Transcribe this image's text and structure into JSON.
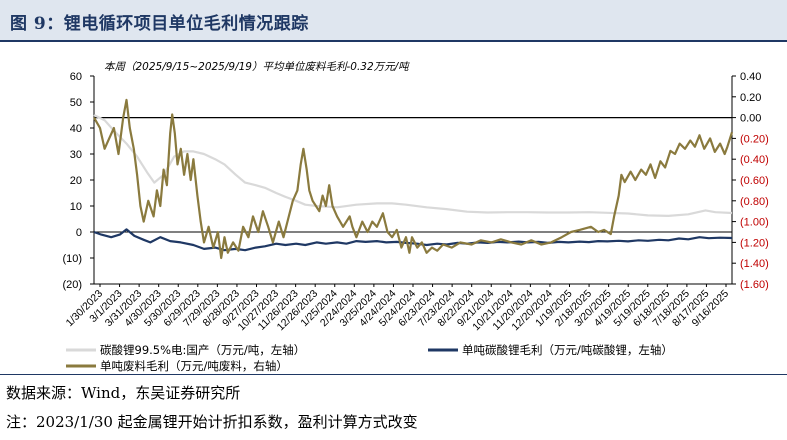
{
  "header": {
    "title": "图 9：锂电循环项目单位毛利情况跟踪"
  },
  "footer": {
    "source": "数据来源：Wind，东吴证券研究所",
    "note": "注：2023/1/30 起金属锂开始计折扣系数，盈利计算方式改变"
  },
  "colors": {
    "lithium_carbonate_price": "#d9d9d9",
    "lithium_carbonate_margin": "#1f3864",
    "waste_margin": "#8a7a3e",
    "neg_label": "#c00000"
  },
  "chart_data": {
    "type": "line",
    "annotation": "本周（2025/9/15~2025/9/19）平均单位废料毛利-0.32万元/吨",
    "x_ticks": [
      "1/30/2023",
      "3/1/2023",
      "3/31/2023",
      "4/30/2023",
      "5/30/2023",
      "6/29/2023",
      "7/29/2023",
      "8/28/2023",
      "9/27/2023",
      "10/27/2023",
      "11/26/2023",
      "12/26/2023",
      "1/25/2024",
      "2/24/2024",
      "3/25/2024",
      "4/24/2024",
      "5/24/2024",
      "6/23/2024",
      "7/23/2024",
      "8/22/2024",
      "9/21/2024",
      "10/21/2024",
      "11/20/2024",
      "12/20/2024",
      "1/19/2025",
      "2/18/2025",
      "3/20/2025",
      "4/19/2025",
      "5/19/2025",
      "6/18/2025",
      "7/18/2025",
      "8/17/2025",
      "9/16/2025"
    ],
    "x_range": [
      "2023-01-30",
      "2025-09-19"
    ],
    "y_left": {
      "min": -20,
      "max": 60,
      "ticks": [
        "60",
        "50",
        "40",
        "30",
        "20",
        "10",
        "0",
        "(10)",
        "(20)"
      ]
    },
    "y_right": {
      "min": -1.6,
      "max": 0.4,
      "ticks": [
        "0.40",
        "0.20",
        "0.00",
        "(0.20)",
        "(0.40)",
        "(0.60)",
        "(0.80)",
        "(1.00)",
        "(1.20)",
        "(1.40)",
        "(1.60)"
      ]
    },
    "series": [
      {
        "name": "碳酸锂99.5%电:国产（万元/吨，左轴）",
        "axis": "left",
        "points": [
          [
            "2023-01-30",
            45
          ],
          [
            "2023-02-15",
            43
          ],
          [
            "2023-03-01",
            39
          ],
          [
            "2023-03-20",
            34
          ],
          [
            "2023-04-05",
            29
          ],
          [
            "2023-04-20",
            23
          ],
          [
            "2023-05-01",
            19
          ],
          [
            "2023-05-15",
            22
          ],
          [
            "2023-05-31",
            29
          ],
          [
            "2023-06-15",
            31
          ],
          [
            "2023-06-29",
            31
          ],
          [
            "2023-07-15",
            30
          ],
          [
            "2023-08-01",
            28
          ],
          [
            "2023-08-15",
            26
          ],
          [
            "2023-09-01",
            22
          ],
          [
            "2023-09-15",
            19
          ],
          [
            "2023-10-01",
            18
          ],
          [
            "2023-10-15",
            17
          ],
          [
            "2023-11-01",
            15
          ],
          [
            "2023-11-15",
            13.5
          ],
          [
            "2023-12-01",
            12
          ],
          [
            "2023-12-15",
            10.5
          ],
          [
            "2024-01-01",
            10
          ],
          [
            "2024-02-01",
            9.5
          ],
          [
            "2024-03-01",
            10.5
          ],
          [
            "2024-04-01",
            11
          ],
          [
            "2024-04-24",
            11
          ],
          [
            "2024-05-15",
            10.5
          ],
          [
            "2024-06-15",
            9.5
          ],
          [
            "2024-07-15",
            8.8
          ],
          [
            "2024-08-15",
            7.8
          ],
          [
            "2024-09-15",
            7.5
          ],
          [
            "2024-10-15",
            7.6
          ],
          [
            "2024-11-15",
            7.6
          ],
          [
            "2024-12-15",
            7.5
          ],
          [
            "2025-01-15",
            7.5
          ],
          [
            "2025-02-15",
            7.6
          ],
          [
            "2025-03-15",
            7.4
          ],
          [
            "2025-04-15",
            7.1
          ],
          [
            "2025-05-15",
            6.4
          ],
          [
            "2025-06-15",
            6.2
          ],
          [
            "2025-07-15",
            6.8
          ],
          [
            "2025-08-10",
            8.3
          ],
          [
            "2025-08-25",
            7.6
          ],
          [
            "2025-09-19",
            7.3
          ]
        ]
      },
      {
        "name": "单吨碳酸锂毛利（万元/吨碳酸锂，左轴）",
        "axis": "left",
        "points": [
          [
            "2023-01-30",
            0
          ],
          [
            "2023-02-10",
            -1
          ],
          [
            "2023-02-25",
            -2
          ],
          [
            "2023-03-10",
            -1
          ],
          [
            "2023-03-20",
            1
          ],
          [
            "2023-04-01",
            -1.5
          ],
          [
            "2023-04-15",
            -3
          ],
          [
            "2023-04-25",
            -4
          ],
          [
            "2023-05-10",
            -2
          ],
          [
            "2023-05-25",
            -3.5
          ],
          [
            "2023-06-10",
            -4
          ],
          [
            "2023-06-29",
            -5
          ],
          [
            "2023-07-15",
            -6.5
          ],
          [
            "2023-08-01",
            -6
          ],
          [
            "2023-08-15",
            -7
          ],
          [
            "2023-09-01",
            -6.5
          ],
          [
            "2023-09-15",
            -7
          ],
          [
            "2023-10-01",
            -6
          ],
          [
            "2023-10-15",
            -5.5
          ],
          [
            "2023-11-01",
            -4.5
          ],
          [
            "2023-11-15",
            -5
          ],
          [
            "2023-12-01",
            -4.5
          ],
          [
            "2023-12-15",
            -5
          ],
          [
            "2024-01-01",
            -4
          ],
          [
            "2024-01-15",
            -4.5
          ],
          [
            "2024-02-01",
            -4
          ],
          [
            "2024-02-15",
            -4.5
          ],
          [
            "2024-03-01",
            -3.5
          ],
          [
            "2024-03-15",
            -3.8
          ],
          [
            "2024-04-01",
            -3.5
          ],
          [
            "2024-04-15",
            -4
          ],
          [
            "2024-05-01",
            -3.8
          ],
          [
            "2024-05-15",
            -4.2
          ],
          [
            "2024-06-01",
            -4.5
          ],
          [
            "2024-06-15",
            -5
          ],
          [
            "2024-07-01",
            -4.5
          ],
          [
            "2024-07-15",
            -4.8
          ],
          [
            "2024-08-01",
            -4.2
          ],
          [
            "2024-08-15",
            -4.5
          ],
          [
            "2024-09-01",
            -4
          ],
          [
            "2024-09-15",
            -4.2
          ],
          [
            "2024-10-01",
            -3.8
          ],
          [
            "2024-10-15",
            -4
          ],
          [
            "2024-11-01",
            -3.7
          ],
          [
            "2024-11-15",
            -4
          ],
          [
            "2024-12-01",
            -3.8
          ],
          [
            "2024-12-15",
            -4.2
          ],
          [
            "2025-01-01",
            -3.8
          ],
          [
            "2025-01-15",
            -4
          ],
          [
            "2025-02-01",
            -3.7
          ],
          [
            "2025-02-15",
            -3.9
          ],
          [
            "2025-03-01",
            -3.5
          ],
          [
            "2025-03-15",
            -3.6
          ],
          [
            "2025-04-01",
            -3.4
          ],
          [
            "2025-04-15",
            -3.6
          ],
          [
            "2025-05-01",
            -3.2
          ],
          [
            "2025-05-15",
            -3.4
          ],
          [
            "2025-06-01",
            -3
          ],
          [
            "2025-06-15",
            -3.2
          ],
          [
            "2025-07-01",
            -2.5
          ],
          [
            "2025-07-15",
            -2.8
          ],
          [
            "2025-08-01",
            -2
          ],
          [
            "2025-08-15",
            -2.4
          ],
          [
            "2025-09-01",
            -2.2
          ],
          [
            "2025-09-19",
            -2.3
          ]
        ]
      },
      {
        "name": "单吨废料毛利（万元/吨废料，右轴）",
        "axis": "right",
        "points": [
          [
            "2023-01-30",
            0.0
          ],
          [
            "2023-02-08",
            -0.1
          ],
          [
            "2023-02-15",
            -0.3
          ],
          [
            "2023-02-22",
            -0.2
          ],
          [
            "2023-03-01",
            -0.1
          ],
          [
            "2023-03-08",
            -0.35
          ],
          [
            "2023-03-15",
            0.0
          ],
          [
            "2023-03-20",
            0.17
          ],
          [
            "2023-03-25",
            -0.1
          ],
          [
            "2023-03-31",
            -0.3
          ],
          [
            "2023-04-05",
            -0.55
          ],
          [
            "2023-04-10",
            -0.85
          ],
          [
            "2023-04-15",
            -1.0
          ],
          [
            "2023-04-22",
            -0.8
          ],
          [
            "2023-04-30",
            -0.95
          ],
          [
            "2023-05-05",
            -0.7
          ],
          [
            "2023-05-10",
            -0.85
          ],
          [
            "2023-05-15",
            -0.5
          ],
          [
            "2023-05-20",
            -0.65
          ],
          [
            "2023-05-25",
            -0.15
          ],
          [
            "2023-05-28",
            0.03
          ],
          [
            "2023-06-01",
            -0.15
          ],
          [
            "2023-06-05",
            -0.45
          ],
          [
            "2023-06-10",
            -0.3
          ],
          [
            "2023-06-15",
            -0.55
          ],
          [
            "2023-06-20",
            -0.35
          ],
          [
            "2023-06-25",
            -0.6
          ],
          [
            "2023-06-29",
            -0.4
          ],
          [
            "2023-07-05",
            -0.75
          ],
          [
            "2023-07-10",
            -1.0
          ],
          [
            "2023-07-15",
            -1.2
          ],
          [
            "2023-07-22",
            -1.05
          ],
          [
            "2023-07-29",
            -1.25
          ],
          [
            "2023-08-05",
            -1.1
          ],
          [
            "2023-08-10",
            -1.35
          ],
          [
            "2023-08-15",
            -1.15
          ],
          [
            "2023-08-20",
            -1.3
          ],
          [
            "2023-08-28",
            -1.2
          ],
          [
            "2023-09-05",
            -1.28
          ],
          [
            "2023-09-12",
            -1.05
          ],
          [
            "2023-09-20",
            -1.15
          ],
          [
            "2023-09-27",
            -0.95
          ],
          [
            "2023-10-05",
            -1.1
          ],
          [
            "2023-10-12",
            -0.9
          ],
          [
            "2023-10-20",
            -1.05
          ],
          [
            "2023-10-27",
            -1.2
          ],
          [
            "2023-11-05",
            -1.0
          ],
          [
            "2023-11-12",
            -1.15
          ],
          [
            "2023-11-20",
            -0.95
          ],
          [
            "2023-11-26",
            -0.8
          ],
          [
            "2023-12-03",
            -0.7
          ],
          [
            "2023-12-08",
            -0.45
          ],
          [
            "2023-12-12",
            -0.3
          ],
          [
            "2023-12-17",
            -0.5
          ],
          [
            "2023-12-21",
            -0.7
          ],
          [
            "2023-12-26",
            -0.8
          ],
          [
            "2024-01-05",
            -0.9
          ],
          [
            "2024-01-10",
            -0.75
          ],
          [
            "2024-01-15",
            -0.85
          ],
          [
            "2024-01-20",
            -0.65
          ],
          [
            "2024-01-25",
            -0.85
          ],
          [
            "2024-02-01",
            -0.95
          ],
          [
            "2024-02-10",
            -1.05
          ],
          [
            "2024-02-20",
            -0.95
          ],
          [
            "2024-02-24",
            -1.05
          ],
          [
            "2024-03-01",
            -1.15
          ],
          [
            "2024-03-10",
            -1.0
          ],
          [
            "2024-03-18",
            -1.1
          ],
          [
            "2024-03-25",
            -1.0
          ],
          [
            "2024-04-01",
            -1.05
          ],
          [
            "2024-04-10",
            -0.92
          ],
          [
            "2024-04-17",
            -1.1
          ],
          [
            "2024-04-24",
            -1.15
          ],
          [
            "2024-05-01",
            -1.08
          ],
          [
            "2024-05-08",
            -1.25
          ],
          [
            "2024-05-15",
            -1.15
          ],
          [
            "2024-05-20",
            -1.3
          ],
          [
            "2024-05-24",
            -1.15
          ],
          [
            "2024-06-01",
            -1.25
          ],
          [
            "2024-06-08",
            -1.2
          ],
          [
            "2024-06-15",
            -1.3
          ],
          [
            "2024-06-23",
            -1.25
          ],
          [
            "2024-07-01",
            -1.28
          ],
          [
            "2024-07-10",
            -1.22
          ],
          [
            "2024-07-23",
            -1.25
          ],
          [
            "2024-08-05",
            -1.2
          ],
          [
            "2024-08-22",
            -1.22
          ],
          [
            "2024-09-05",
            -1.18
          ],
          [
            "2024-09-21",
            -1.2
          ],
          [
            "2024-10-05",
            -1.17
          ],
          [
            "2024-10-21",
            -1.2
          ],
          [
            "2024-11-05",
            -1.22
          ],
          [
            "2024-11-20",
            -1.18
          ],
          [
            "2024-12-05",
            -1.22
          ],
          [
            "2024-12-20",
            -1.2
          ],
          [
            "2025-01-05",
            -1.15
          ],
          [
            "2025-01-19",
            -1.1
          ],
          [
            "2025-02-01",
            -1.08
          ],
          [
            "2025-02-18",
            -1.05
          ],
          [
            "2025-03-01",
            -1.1
          ],
          [
            "2025-03-10",
            -1.08
          ],
          [
            "2025-03-20",
            -1.12
          ],
          [
            "2025-03-25",
            -0.95
          ],
          [
            "2025-04-01",
            -0.75
          ],
          [
            "2025-04-05",
            -0.55
          ],
          [
            "2025-04-10",
            -0.62
          ],
          [
            "2025-04-19",
            -0.52
          ],
          [
            "2025-04-26",
            -0.6
          ],
          [
            "2025-05-05",
            -0.5
          ],
          [
            "2025-05-12",
            -0.55
          ],
          [
            "2025-05-19",
            -0.45
          ],
          [
            "2025-05-26",
            -0.58
          ],
          [
            "2025-06-03",
            -0.42
          ],
          [
            "2025-06-10",
            -0.48
          ],
          [
            "2025-06-18",
            -0.32
          ],
          [
            "2025-06-25",
            -0.35
          ],
          [
            "2025-07-02",
            -0.25
          ],
          [
            "2025-07-10",
            -0.3
          ],
          [
            "2025-07-18",
            -0.22
          ],
          [
            "2025-07-25",
            -0.28
          ],
          [
            "2025-08-01",
            -0.17
          ],
          [
            "2025-08-08",
            -0.3
          ],
          [
            "2025-08-17",
            -0.2
          ],
          [
            "2025-08-24",
            -0.33
          ],
          [
            "2025-09-01",
            -0.25
          ],
          [
            "2025-09-08",
            -0.35
          ],
          [
            "2025-09-12",
            -0.28
          ],
          [
            "2025-09-19",
            -0.14
          ]
        ]
      }
    ]
  }
}
